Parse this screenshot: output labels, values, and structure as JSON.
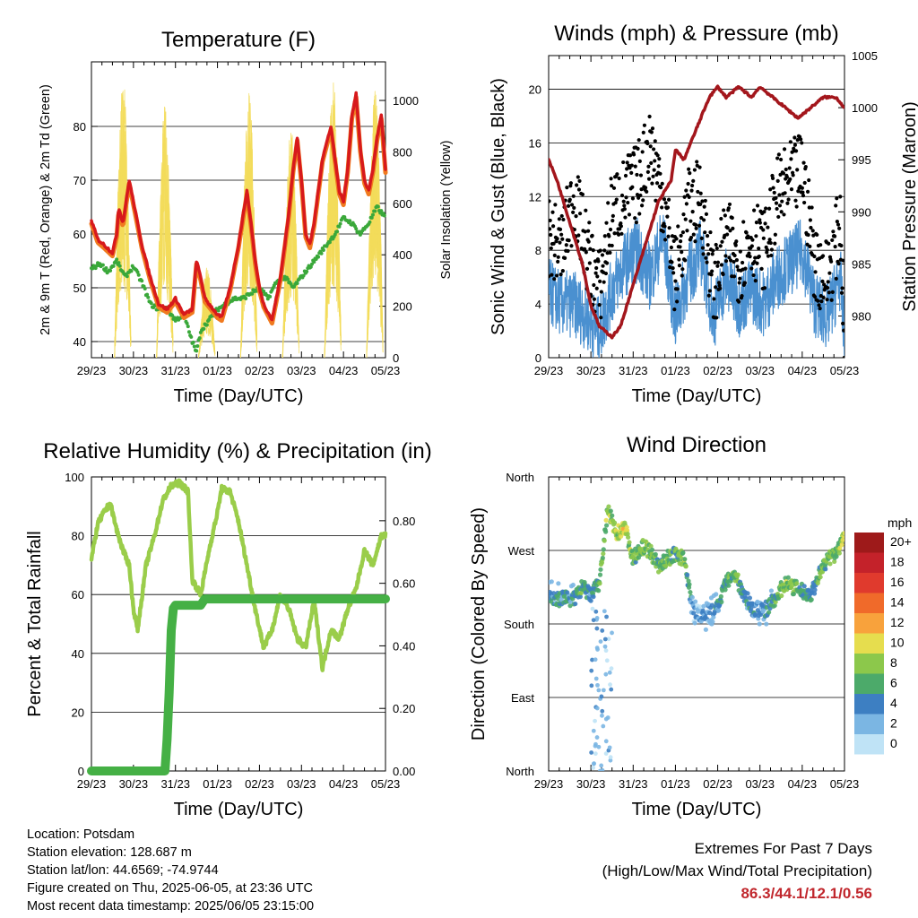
{
  "chart_data": [
    {
      "type": "line",
      "title": "Temperature (F)",
      "xlabel": "Time (Day/UTC)",
      "ylabel": "2m & 9m T (Red, Orange) & 2m Td (Green)",
      "y2label": "Solar Insolation (Yellow)",
      "x_ticks": [
        "29/23",
        "30/23",
        "31/23",
        "01/23",
        "02/23",
        "03/23",
        "04/23",
        "05/23"
      ],
      "ylim": [
        37,
        92
      ],
      "y_ticks": [
        40,
        50,
        60,
        70,
        80
      ],
      "y2lim": [
        0,
        1150
      ],
      "y2_ticks": [
        0,
        200,
        400,
        600,
        800,
        1000
      ],
      "grid": "horizontal",
      "colors": {
        "t2m": "#d7191c",
        "t9m": "#f07a1f",
        "td2m": "#3aa83a",
        "solar": "#f3dc5a"
      },
      "series": [
        {
          "name": "2m T",
          "x": [
            0,
            0.15,
            0.3,
            0.5,
            0.6,
            0.65,
            0.75,
            0.9,
            1.0,
            1.2,
            1.4,
            1.6,
            1.8,
            2.0,
            2.2,
            2.4,
            2.5,
            2.6,
            2.7,
            2.8,
            2.9,
            3.0,
            3.1,
            3.3,
            3.5,
            3.7,
            3.8,
            3.9,
            4.0,
            4.1,
            4.3,
            4.5,
            4.7,
            4.8,
            4.9,
            5.0,
            5.1,
            5.2,
            5.3,
            5.5,
            5.7,
            5.9,
            6.0,
            6.1,
            6.2,
            6.3,
            6.4,
            6.5,
            6.6,
            6.7,
            6.8,
            6.9,
            7.0
          ],
          "values": [
            62.5,
            59,
            58,
            56.5,
            60,
            65,
            62,
            70,
            66,
            58,
            52,
            47,
            46,
            48,
            45,
            46,
            55,
            52,
            48,
            47,
            46,
            45,
            44.5,
            50,
            58,
            68,
            62,
            55,
            50,
            47,
            44,
            52,
            64,
            72,
            78,
            70,
            60,
            58,
            62,
            74,
            80,
            68,
            66,
            72,
            82,
            86,
            76,
            70,
            68,
            72,
            78,
            82,
            72
          ]
        },
        {
          "name": "2m Td",
          "x": [
            0,
            0.2,
            0.4,
            0.6,
            0.8,
            1.0,
            1.2,
            1.4,
            1.6,
            1.8,
            2.0,
            2.2,
            2.4,
            2.5,
            2.6,
            2.8,
            3.0,
            3.2,
            3.4,
            3.6,
            3.8,
            4.0,
            4.2,
            4.4,
            4.6,
            4.8,
            5.0,
            5.2,
            5.4,
            5.6,
            5.8,
            6.0,
            6.2,
            6.4,
            6.6,
            6.8,
            7.0
          ],
          "values": [
            53.5,
            54.5,
            53,
            55,
            52,
            54,
            51,
            47,
            46,
            46,
            44,
            45,
            40,
            38,
            42,
            44,
            46,
            47,
            48,
            48,
            49,
            50,
            48,
            51,
            52,
            50,
            52,
            54,
            56,
            58,
            60,
            63,
            62,
            60,
            62,
            65,
            63
          ]
        },
        {
          "name": "Solar Insolation",
          "axis": "y2",
          "x": [
            0.5,
            0.75,
            1.0,
            1.5,
            1.75,
            2.0,
            2.5,
            2.75,
            3.0,
            3.5,
            3.75,
            4.0,
            4.5,
            4.75,
            5.0,
            5.5,
            5.75,
            6.0,
            6.5,
            6.75,
            7.0
          ],
          "values": [
            0,
            1100,
            0,
            0,
            1000,
            0,
            0,
            350,
            0,
            0,
            1050,
            0,
            0,
            900,
            0,
            0,
            1100,
            0,
            0,
            1050,
            0
          ]
        }
      ]
    },
    {
      "type": "scatter",
      "title": "Winds (mph) & Pressure (mb)",
      "xlabel": "Time (Day/UTC)",
      "ylabel": "Sonic Wind & Gust (Blue, Black)",
      "y2label": "Station Pressure (Maroon)",
      "x_ticks": [
        "29/23",
        "30/23",
        "31/23",
        "01/23",
        "02/23",
        "03/23",
        "04/23",
        "05/23"
      ],
      "ylim": [
        0,
        22.5
      ],
      "y_ticks": [
        0,
        4,
        8,
        12,
        16,
        20
      ],
      "y2lim": [
        976,
        1005
      ],
      "y2_ticks": [
        980,
        985,
        990,
        995,
        1000,
        1005
      ],
      "grid": "horizontal",
      "colors": {
        "wind": "#4a90d0",
        "gust": "#000000",
        "pressure": "#a3161c"
      },
      "series": [
        {
          "name": "Sonic Wind",
          "x": [
            0,
            0.3,
            0.6,
            0.9,
            1.2,
            1.5,
            1.8,
            2.1,
            2.4,
            2.7,
            3.0,
            3.3,
            3.6,
            3.9,
            4.2,
            4.5,
            4.8,
            5.1,
            5.4,
            5.7,
            6.0,
            6.3,
            6.6,
            6.9,
            7.0
          ],
          "values": [
            5,
            4,
            4,
            3,
            2,
            5,
            7,
            8,
            6,
            9,
            3,
            6,
            8,
            3,
            6,
            4,
            5,
            4,
            6,
            7,
            8,
            4,
            3,
            6,
            1
          ]
        },
        {
          "name": "Gust",
          "x": [
            0,
            0.3,
            0.6,
            0.9,
            1.2,
            1.5,
            1.8,
            2.1,
            2.4,
            2.7,
            3.0,
            3.3,
            3.6,
            3.9,
            4.2,
            4.5,
            4.8,
            5.1,
            5.4,
            5.7,
            6.0,
            6.3,
            6.6,
            6.9,
            7.0
          ],
          "values": [
            9,
            8,
            12,
            8,
            5,
            11,
            12,
            13,
            16,
            12,
            6,
            11,
            12,
            5,
            9,
            7,
            9,
            8,
            12,
            13,
            14,
            7,
            6,
            10,
            2
          ]
        },
        {
          "name": "Station Pressure",
          "axis": "y2",
          "x": [
            0,
            0.2,
            0.5,
            0.8,
            1.0,
            1.2,
            1.5,
            1.7,
            2.0,
            2.3,
            2.6,
            2.9,
            3.0,
            3.2,
            3.5,
            3.8,
            4.0,
            4.2,
            4.5,
            4.8,
            5.0,
            5.3,
            5.6,
            5.9,
            6.2,
            6.5,
            6.8,
            7.0
          ],
          "values": [
            995,
            993,
            989,
            985,
            981,
            979,
            978,
            979,
            983,
            987,
            991,
            993,
            996,
            995,
            998,
            1001,
            1002,
            1001,
            1002,
            1001,
            1002,
            1001,
            1000,
            999,
            1000,
            1001,
            1001,
            1000
          ]
        }
      ]
    },
    {
      "type": "line",
      "title": "Relative Humidity (%) & Precipitation (in)",
      "xlabel": "Time (Day/UTC)",
      "ylabel": "Percent & Total Rainfall",
      "x_ticks": [
        "29/23",
        "30/23",
        "31/23",
        "01/23",
        "02/23",
        "03/23",
        "04/23",
        "05/23"
      ],
      "ylim": [
        0,
        100
      ],
      "y_ticks": [
        0,
        20,
        40,
        60,
        80,
        100
      ],
      "y2lim": [
        0,
        0.94
      ],
      "y2_ticks": [
        "0.00",
        "0.20",
        "0.40",
        "0.60",
        "0.80"
      ],
      "grid": "horizontal",
      "colors": {
        "rh": "#9acd4a",
        "precip": "#45b045"
      },
      "series": [
        {
          "name": "Relative Humidity",
          "x": [
            0,
            0.15,
            0.3,
            0.45,
            0.6,
            0.75,
            0.9,
            1.0,
            1.1,
            1.3,
            1.5,
            1.7,
            1.9,
            2.1,
            2.3,
            2.4,
            2.6,
            2.8,
            3.0,
            3.1,
            3.3,
            3.5,
            3.7,
            3.9,
            4.1,
            4.3,
            4.5,
            4.7,
            4.9,
            5.1,
            5.3,
            5.5,
            5.7,
            5.9,
            6.1,
            6.3,
            6.5,
            6.7,
            6.9,
            7.0
          ],
          "values": [
            72,
            84,
            88,
            91,
            82,
            75,
            70,
            55,
            48,
            70,
            80,
            92,
            97,
            98,
            95,
            65,
            60,
            75,
            88,
            96,
            95,
            85,
            70,
            55,
            42,
            48,
            60,
            55,
            45,
            42,
            58,
            35,
            48,
            45,
            55,
            62,
            75,
            70,
            80,
            80
          ]
        },
        {
          "name": "Precipitation",
          "axis": "y2",
          "x": [
            0,
            1.5,
            1.75,
            1.8,
            1.85,
            1.9,
            1.95,
            2.0,
            2.6,
            2.7,
            3.5,
            4.5,
            5.5,
            6.5,
            7.0
          ],
          "values": [
            0,
            0,
            0,
            0.1,
            0.25,
            0.45,
            0.52,
            0.53,
            0.53,
            0.55,
            0.55,
            0.55,
            0.55,
            0.55,
            0.55
          ]
        }
      ]
    },
    {
      "type": "scatter",
      "title": "Wind Direction",
      "xlabel": "Time (Day/UTC)",
      "ylabel": "Direction (Colored By Speed)",
      "x_ticks": [
        "29/23",
        "30/23",
        "31/23",
        "01/23",
        "02/23",
        "03/23",
        "04/23",
        "05/23"
      ],
      "y_ticks": [
        "North",
        "East",
        "South",
        "West",
        "North"
      ],
      "ylim": [
        0,
        360
      ],
      "grid": "horizontal",
      "legend": {
        "title": "mph",
        "placement": "right",
        "labels": [
          "20+",
          "18",
          "16",
          "14",
          "12",
          "10",
          "8",
          "6",
          "4",
          "2",
          "0"
        ],
        "colors": [
          "#9e1a1a",
          "#c4222a",
          "#e03a2d",
          "#f06a2a",
          "#f8a23c",
          "#e6dd4e",
          "#8cc84b",
          "#4caa6a",
          "#3d7fc2",
          "#7bb6e3",
          "#bfe3f6"
        ]
      },
      "series": [
        {
          "name": "Direction",
          "x": [
            0,
            0.2,
            0.4,
            0.6,
            0.8,
            1.0,
            1.2,
            1.4,
            1.6,
            1.8,
            2.0,
            2.2,
            2.4,
            2.6,
            2.8,
            3.0,
            3.2,
            3.4,
            3.6,
            3.8,
            4.0,
            4.2,
            4.4,
            4.6,
            4.8,
            5.0,
            5.2,
            5.4,
            5.6,
            5.8,
            6.0,
            6.2,
            6.4,
            6.6,
            6.8,
            7.0
          ],
          "values": [
            215,
            210,
            212,
            210,
            225,
            215,
            230,
            320,
            290,
            300,
            260,
            275,
            270,
            250,
            260,
            265,
            260,
            200,
            190,
            195,
            200,
            230,
            240,
            220,
            200,
            195,
            200,
            215,
            230,
            225,
            220,
            215,
            240,
            260,
            265,
            290
          ],
          "speed": [
            4,
            4,
            5,
            4,
            6,
            4,
            6,
            8,
            8,
            10,
            6,
            7,
            8,
            6,
            7,
            6,
            8,
            3,
            2,
            3,
            4,
            6,
            7,
            5,
            4,
            3,
            4,
            6,
            8,
            7,
            6,
            5,
            6,
            7,
            7,
            8
          ]
        }
      ]
    }
  ],
  "footer": {
    "location": "Location: Potsdam",
    "elevation": "Station elevation: 128.687 m",
    "latlon": "Station lat/lon: 44.6569; -74.9744",
    "created": "Figure created on Thu, 2025-06-05, at 23:36 UTC",
    "recent": "Most recent data timestamp: 2025/06/05 23:15:00",
    "extremes_title": "Extremes For Past 7 Days",
    "extremes_sub": "(High/Low/Max Wind/Total Precipitation)",
    "extremes_value": "86.3/44.1/12.1/0.56"
  }
}
